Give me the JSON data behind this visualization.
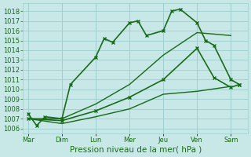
{
  "x_labels": [
    "Mar",
    "Dim",
    "Lun",
    "Mer",
    "Jeu",
    "Ven",
    "Sam"
  ],
  "series1_x": [
    0,
    0.25,
    0.5,
    1.0,
    1.25,
    2.0,
    2.25,
    2.5,
    3.0,
    3.25,
    3.5,
    4.0,
    4.25,
    4.5,
    5.0,
    5.25,
    5.5,
    6.0,
    6.25
  ],
  "series1_y": [
    1007.5,
    1006.3,
    1007.2,
    1007.0,
    1010.5,
    1013.3,
    1015.2,
    1014.8,
    1016.8,
    1017.0,
    1015.5,
    1016.0,
    1018.0,
    1018.2,
    1016.8,
    1015.0,
    1014.5,
    1011.0,
    1010.5
  ],
  "series2_x": [
    0,
    1.0,
    2.0,
    3.0,
    4.0,
    5.0,
    6.0
  ],
  "series2_y": [
    1007.0,
    1007.0,
    1008.5,
    1010.5,
    1013.5,
    1015.8,
    1015.5
  ],
  "series3_x": [
    0,
    1.0,
    2.0,
    3.0,
    4.0,
    5.0,
    5.5,
    6.0,
    6.25
  ],
  "series3_y": [
    1007.0,
    1006.8,
    1007.8,
    1009.2,
    1011.0,
    1014.2,
    1011.2,
    1010.2,
    1010.5
  ],
  "series4_x": [
    0,
    1.0,
    2.0,
    3.0,
    4.0,
    5.0,
    6.0
  ],
  "series4_y": [
    1007.0,
    1006.5,
    1007.2,
    1008.0,
    1009.5,
    1009.8,
    1010.3
  ],
  "ylim": [
    1005.5,
    1018.8
  ],
  "yticks": [
    1006,
    1007,
    1008,
    1009,
    1010,
    1011,
    1012,
    1013,
    1014,
    1015,
    1016,
    1017,
    1018
  ],
  "xlabel": "Pression niveau de la mer( hPa )",
  "bg_color": "#c8e8e8",
  "grid_color": "#9ecece",
  "line_color": "#1a6b1a",
  "marker": "x",
  "markersize": 3.5,
  "linewidth": 1.2,
  "tick_fontsize": 6,
  "xlabel_fontsize": 7.5
}
